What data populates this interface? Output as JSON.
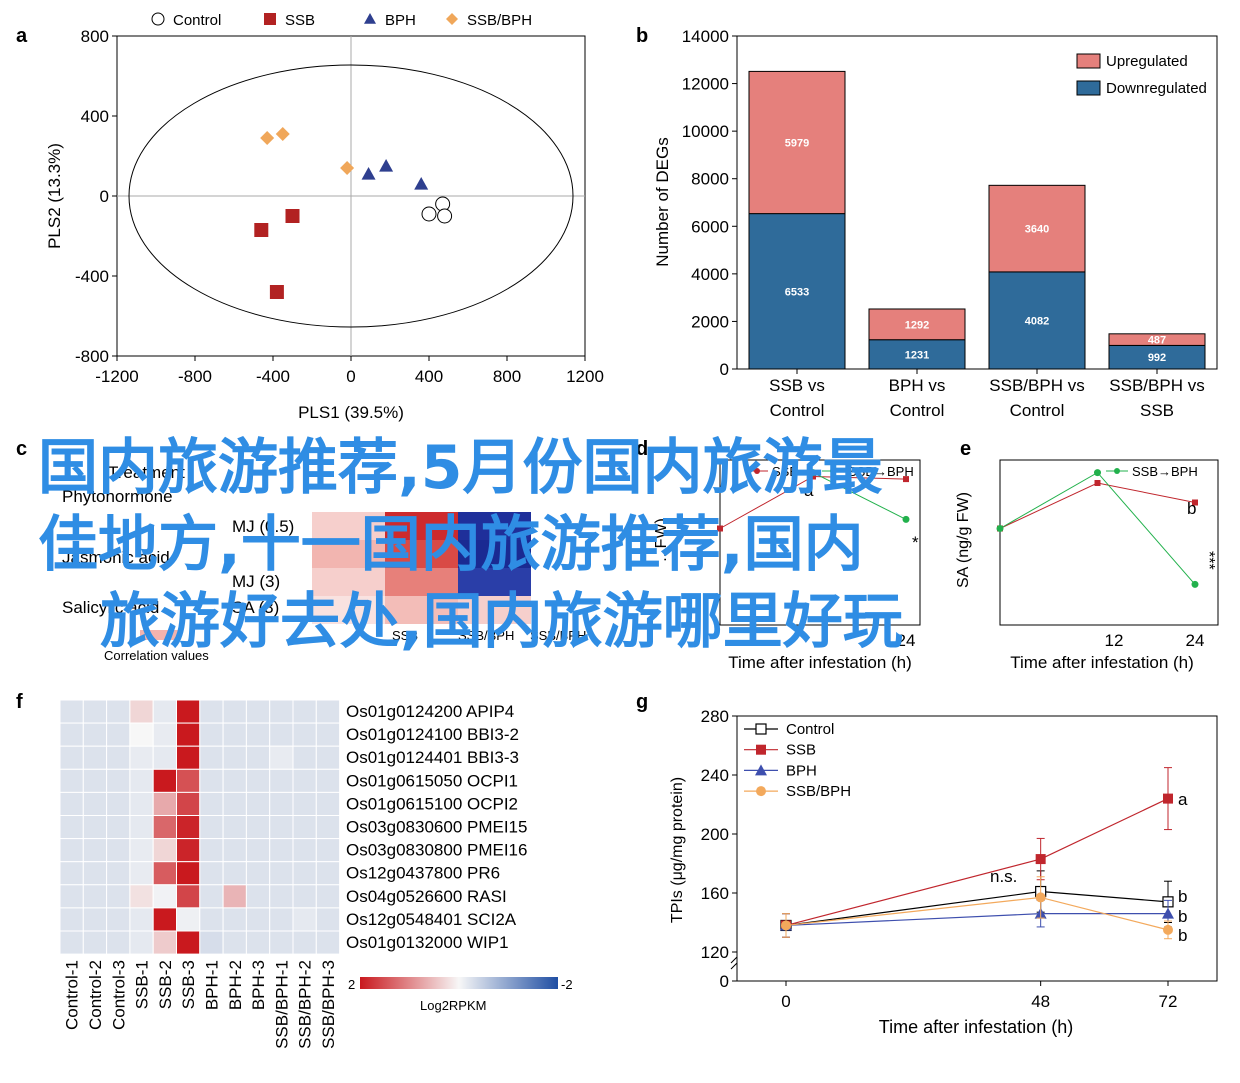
{
  "panel_labels": [
    "a",
    "b",
    "c",
    "d",
    "e",
    "f",
    "g"
  ],
  "overlay_text": [
    "国内旅游推荐,5月份国内旅游最",
    "佳地方,十一国内旅游推荐,国内",
    "旅游好去处,国内旅游哪里好玩"
  ],
  "colors": {
    "control_marker": "#ffffff",
    "ssb": "#b22222",
    "bph": "#2e3f8f",
    "ssbbph": "#f0a75a",
    "upregulated": "#e5807c",
    "downregulated": "#2f6b9a",
    "heat_high": "#c9191e",
    "heat_low": "#1f4ea3",
    "overlay": "#2f8de4",
    "line_ssb": "#c0262d",
    "line_bph": "#3e4fae",
    "line_ssbbph": "#f3a95c",
    "line_control": "#000000",
    "green": "#22b14c"
  },
  "chart_data": [
    {
      "id": "a",
      "type": "scatter",
      "xlabel": "PLS1 (39.5%)",
      "ylabel": "PLS2 (13.3%)",
      "xlim": [
        -1200,
        1200
      ],
      "ylim": [
        -800,
        800
      ],
      "xticks": [
        -1200,
        -800,
        -400,
        0,
        400,
        800,
        1200
      ],
      "yticks": [
        800,
        400,
        0,
        -400,
        -800
      ],
      "legend": [
        "Control",
        "SSB",
        "BPH",
        "SSB/BPH"
      ],
      "series": [
        {
          "name": "Control",
          "marker": "circle",
          "points": [
            [
              470,
              -40
            ],
            [
              400,
              -90
            ],
            [
              480,
              -100
            ]
          ]
        },
        {
          "name": "SSB",
          "marker": "square",
          "points": [
            [
              -300,
              -100
            ],
            [
              -460,
              -170
            ],
            [
              -380,
              -480
            ]
          ]
        },
        {
          "name": "BPH",
          "marker": "triangle",
          "points": [
            [
              90,
              110
            ],
            [
              180,
              150
            ],
            [
              360,
              60
            ]
          ]
        },
        {
          "name": "SSB/BPH",
          "marker": "diamond",
          "points": [
            [
              -430,
              290
            ],
            [
              -350,
              310
            ],
            [
              -20,
              140
            ]
          ]
        }
      ]
    },
    {
      "id": "b",
      "type": "bar",
      "ylabel": "Number of DEGs",
      "ylim": [
        0,
        14000
      ],
      "yticks": [
        0,
        2000,
        4000,
        6000,
        8000,
        10000,
        12000,
        14000
      ],
      "categories": [
        [
          "SSB vs",
          "Control"
        ],
        [
          "BPH vs",
          "Control"
        ],
        [
          "SSB/BPH vs",
          "Control"
        ],
        [
          "SSB/BPH vs",
          "SSB"
        ]
      ],
      "series": [
        {
          "name": "Downregulated",
          "values": [
            6533,
            1231,
            4082,
            992
          ]
        },
        {
          "name": "Upregulated",
          "values": [
            5979,
            1292,
            3640,
            487
          ]
        }
      ],
      "legend": [
        "Upregulated",
        "Downregulated"
      ]
    },
    {
      "id": "c",
      "type": "table",
      "visible_text": [
        "Treatment",
        "Phytohormone",
        "Jasmonic acid",
        "Salicylic acid",
        "MJ (0.5)",
        "MJ (3)",
        "SA (3)",
        "SSB",
        "SSB/BPH",
        "SSB/BPH",
        "Correlation values"
      ],
      "cells": [
        [
          "#f6cfcc",
          "#cd2a2d",
          "#1f2f9a"
        ],
        [
          "#f2b5b0",
          "#d94a45",
          "#1a2a92"
        ],
        [
          "#f6cfcc",
          "#e7807a",
          "#2a3ea8"
        ],
        [
          "#f9e2e0",
          "#f3bdb8",
          "#f6cfcc"
        ]
      ]
    },
    {
      "id": "d",
      "type": "line",
      "ylabel": "...FW)",
      "xlabel": "Time after infestation (h)",
      "xticks": [
        24
      ],
      "legend": [
        "SSB",
        "SSB→BPH"
      ],
      "annotations": [
        "a",
        "*"
      ],
      "series": [
        {
          "name": "SSB",
          "values": [
            [
              0,
              0.55
            ],
            [
              12,
              0.95
            ],
            [
              24,
              0.93
            ]
          ]
        },
        {
          "name": "SSB→BPH",
          "values": [
            [
              12,
              0.98
            ],
            [
              24,
              0.62
            ]
          ]
        }
      ]
    },
    {
      "id": "e",
      "type": "line",
      "ylabel": "SA (ng/g FW)",
      "xlabel": "Time after infestation (h)",
      "xticks": [
        12,
        24
      ],
      "legend": [
        "SSB→BPH"
      ],
      "annotations": [
        "b",
        "***"
      ],
      "series": [
        {
          "name": "SSB",
          "values": [
            [
              0,
              0.55
            ],
            [
              12,
              0.9
            ],
            [
              24,
              0.75
            ]
          ]
        },
        {
          "name": "SSB→BPH",
          "values": [
            [
              0,
              0.55
            ],
            [
              12,
              0.98
            ],
            [
              24,
              0.12
            ]
          ]
        }
      ]
    },
    {
      "id": "f",
      "type": "heatmap",
      "rows": [
        "Os01g0124200 APIP4",
        "Os01g0124100 BBI3-2",
        "Os01g0124401 BBI3-3",
        "Os01g0615050 OCPI1",
        "Os01g0615100 OCPI2",
        "Os03g0830600 PMEI15",
        "Os03g0830800 PMEI16",
        "Os12g0437800 PR6",
        "Os04g0526600 RASI",
        "Os12g0548401 SCI2A",
        "Os01g0132000 WIP1"
      ],
      "columns": [
        "Control-1",
        "Control-2",
        "Control-3",
        "SSB-1",
        "SSB-2",
        "SSB-3",
        "BPH-1",
        "BPH-2",
        "BPH-3",
        "SSB/BPH-1",
        "SSB/BPH-2",
        "SSB/BPH-3"
      ],
      "scale": {
        "label": "Log2RPKM",
        "max": "2",
        "min": "-2"
      },
      "values": [
        [
          -0.9,
          -0.9,
          -0.9,
          0.3,
          -0.6,
          2,
          -0.9,
          -0.9,
          -0.9,
          -0.9,
          -0.9,
          -0.9
        ],
        [
          -0.9,
          -0.9,
          -0.9,
          0,
          -0.5,
          2,
          -0.9,
          -0.9,
          -0.9,
          -0.9,
          -0.9,
          -0.9
        ],
        [
          -0.9,
          -0.9,
          -0.9,
          -0.5,
          -0.6,
          2,
          -0.9,
          -0.9,
          -0.9,
          -0.5,
          -0.9,
          -0.9
        ],
        [
          -0.9,
          -0.9,
          -0.9,
          -0.6,
          2,
          1.5,
          -0.9,
          -0.9,
          -0.9,
          -0.9,
          -0.9,
          -0.9
        ],
        [
          -0.9,
          -0.9,
          -0.9,
          -0.6,
          0.7,
          1.6,
          -0.9,
          -0.9,
          -0.9,
          -0.9,
          -0.9,
          -0.9
        ],
        [
          -0.9,
          -0.9,
          -0.9,
          -0.6,
          1.3,
          1.9,
          -0.9,
          -0.9,
          -0.9,
          -0.9,
          -0.9,
          -0.9
        ],
        [
          -0.9,
          -0.9,
          -0.9,
          -0.5,
          0.3,
          1.9,
          -0.9,
          -0.9,
          -0.9,
          -0.9,
          -0.9,
          -0.9
        ],
        [
          -0.9,
          -0.9,
          -0.9,
          -0.5,
          1.4,
          2,
          -0.9,
          -0.9,
          -0.9,
          -0.9,
          -0.9,
          -0.9
        ],
        [
          -0.9,
          -0.9,
          -0.9,
          0.2,
          -0.2,
          1.6,
          -0.9,
          0.6,
          -0.9,
          -0.9,
          -0.9,
          -0.9
        ],
        [
          -0.9,
          -0.9,
          -0.9,
          -0.6,
          2,
          -0.3,
          -0.9,
          -0.9,
          -0.9,
          -0.9,
          -0.6,
          -0.9
        ],
        [
          -0.9,
          -0.9,
          -0.9,
          -0.6,
          0.4,
          2,
          -1.1,
          -0.9,
          -0.9,
          -0.9,
          -0.9,
          -0.9
        ]
      ]
    },
    {
      "id": "g",
      "type": "line",
      "ylabel": "TPIs (μg/mg protein)",
      "xlabel": "Time after infestation (h)",
      "xticks": [
        0,
        48,
        72
      ],
      "yticks": [
        120,
        160,
        200,
        240,
        280
      ],
      "ybreak_label": "0",
      "legend": [
        "Control",
        "SSB",
        "BPH",
        "SSB/BPH"
      ],
      "annotations": {
        "ssb_72": "a",
        "ns_48": "n.s.",
        "ctrl_72": "b",
        "bph_72": "b",
        "ssbbph_72": "b"
      },
      "series": [
        {
          "name": "Control",
          "x": [
            0,
            48,
            72
          ],
          "y": [
            138,
            161,
            154
          ],
          "err": [
            8,
            14,
            14
          ]
        },
        {
          "name": "SSB",
          "x": [
            0,
            48,
            72
          ],
          "y": [
            138,
            183,
            224
          ],
          "err": [
            8,
            14,
            21
          ]
        },
        {
          "name": "BPH",
          "x": [
            0,
            48,
            72
          ],
          "y": [
            138,
            146,
            146
          ],
          "err": [
            8,
            9,
            9
          ]
        },
        {
          "name": "SSB/BPH",
          "x": [
            0,
            48,
            72
          ],
          "y": [
            138,
            157,
            135
          ],
          "err": [
            8,
            14,
            6
          ]
        }
      ]
    }
  ]
}
